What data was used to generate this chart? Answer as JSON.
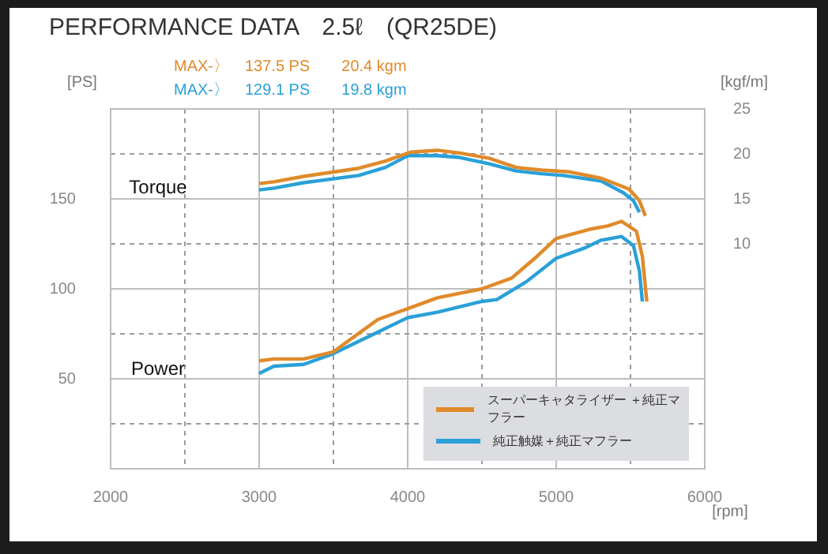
{
  "chart_data": {
    "type": "line",
    "title": "PERFORMANCE DATA　2.5ℓ　(QR25DE)",
    "xlabel": "[rpm]",
    "ylabel": "[PS]",
    "y2label": "[kgf/m]",
    "xlim": [
      2000,
      6000
    ],
    "xticks": [
      2000,
      {
        "value": 2500,
        "label": null
      },
      3000,
      {
        "value": 3500,
        "label": null
      },
      4000,
      {
        "value": 4500,
        "label": null
      },
      5000,
      {
        "value": 5500,
        "label": null
      },
      6000
    ],
    "ylim": [
      0,
      200
    ],
    "yticks": [
      {
        "value": 25,
        "label": null
      },
      50,
      {
        "value": 75,
        "label": null
      },
      100,
      {
        "value": 125,
        "label": null
      },
      150,
      {
        "value": 175,
        "label": null
      }
    ],
    "y2lim": [
      -15,
      25
    ],
    "y2ticks": [
      10,
      15,
      20,
      25
    ],
    "grid": true,
    "legend": "bottom right",
    "marker": "none",
    "line_style": "solid",
    "annotations": [
      "MAX-〉　137.5 PS　　20.4 kgm",
      "MAX-〉　129.1 PS　　19.8 kgm",
      "Torque",
      "Power"
    ],
    "series": [
      {
        "name": "スーパーキャタライザー ＋純正マフラー",
        "color": "#e08a2a",
        "x": [
          3000,
          3100,
          3300,
          3500,
          3800,
          4000,
          4200,
          4500,
          4700,
          4870,
          5000,
          5220,
          5350,
          5440,
          5540,
          5580,
          5610
        ],
        "values": [
          60,
          61,
          61,
          65,
          83,
          89,
          95,
          100,
          106,
          118,
          128,
          133,
          135,
          137.5,
          132,
          118,
          93
        ]
      },
      {
        "name": "純正触媒＋純正マフラー",
        "color": "#2aa0d8",
        "x": [
          3000,
          3100,
          3300,
          3500,
          3800,
          4000,
          4200,
          4500,
          4600,
          4800,
          5000,
          5200,
          5300,
          5440,
          5520,
          5560,
          5580
        ],
        "values": [
          53,
          57,
          58,
          64,
          76,
          84,
          87,
          93,
          94,
          104,
          117,
          123,
          127,
          129.1,
          124,
          110,
          93
        ]
      },
      {
        "color": "#e08a2a",
        "axis": "y2",
        "x": [
          3000,
          3100,
          3300,
          3670,
          3850,
          4020,
          4200,
          4350,
          4550,
          4730,
          4900,
          5090,
          5300,
          5490,
          5560,
          5600
        ],
        "values": [
          16.7,
          16.9,
          17.5,
          18.4,
          19.2,
          20.2,
          20.4,
          20.1,
          19.5,
          18.5,
          18.2,
          18.0,
          17.3,
          16.1,
          14.8,
          13.1
        ]
      },
      {
        "color": "#2aa0d8",
        "axis": "y2",
        "x": [
          3000,
          3100,
          3300,
          3670,
          3850,
          4000,
          4200,
          4350,
          4550,
          4730,
          4900,
          5050,
          5300,
          5450,
          5520,
          5560
        ],
        "values": [
          16.0,
          16.2,
          16.8,
          17.6,
          18.5,
          19.8,
          19.8,
          19.6,
          18.9,
          18.1,
          17.8,
          17.6,
          17.0,
          15.7,
          14.8,
          13.5
        ]
      }
    ]
  }
}
